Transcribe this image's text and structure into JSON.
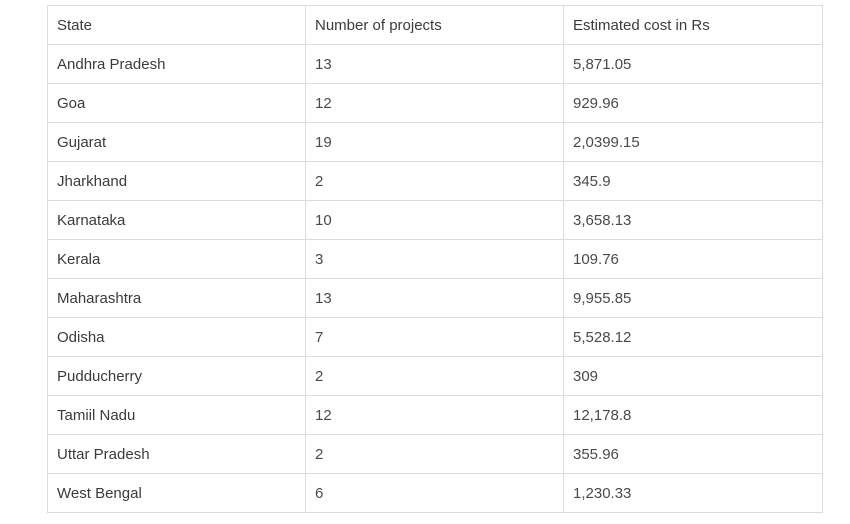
{
  "table": {
    "headers": [
      "State",
      "Number of projects",
      "Estimated cost in Rs"
    ],
    "rows": [
      [
        "Andhra Pradesh",
        "13",
        "5,871.05"
      ],
      [
        "Goa",
        "12",
        "929.96"
      ],
      [
        "Gujarat",
        "19",
        "2,0399.15"
      ],
      [
        "Jharkhand",
        "2",
        "345.9"
      ],
      [
        "Karnataka",
        "10",
        "3,658.13"
      ],
      [
        "Kerala",
        "3",
        "109.76"
      ],
      [
        "Maharashtra",
        "13",
        "9,955.85"
      ],
      [
        "Odisha",
        "7",
        "5,528.12"
      ],
      [
        "Pudducherry",
        "2",
        "309"
      ],
      [
        "Tamiil Nadu",
        "12",
        "12,178.8"
      ],
      [
        "Uttar Pradesh",
        "2",
        "355.96"
      ],
      [
        "West Bengal",
        "6",
        "1,230.33"
      ]
    ]
  }
}
